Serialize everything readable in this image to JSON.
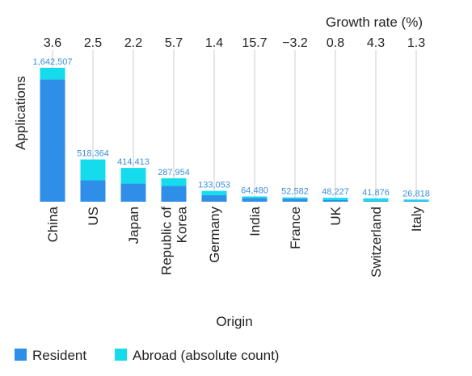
{
  "chart_data": {
    "type": "bar",
    "stacked": true,
    "categories": [
      "China",
      "US",
      "Japan",
      "Republic of Korea",
      "Germany",
      "India",
      "France",
      "UK",
      "Switzerland",
      "Italy"
    ],
    "category_lines": [
      [
        "China"
      ],
      [
        "US"
      ],
      [
        "Japan"
      ],
      [
        "Republic of",
        "Korea"
      ],
      [
        "Germany"
      ],
      [
        "India"
      ],
      [
        "France"
      ],
      [
        "UK"
      ],
      [
        "Switzerland"
      ],
      [
        "Italy"
      ]
    ],
    "totals": [
      1642507,
      518364,
      414413,
      287954,
      133053,
      64480,
      52582,
      48227,
      41876,
      26818
    ],
    "total_labels": [
      "1,642,507",
      "518,364",
      "414,413",
      "287,954",
      "133,053",
      "64,480",
      "52,582",
      "48,227",
      "41,876",
      "26,818"
    ],
    "series": [
      {
        "name": "Resident",
        "color": "#2e8ee8",
        "values": [
          1500000,
          262000,
          222000,
          194000,
          80000,
          44000,
          37000,
          20000,
          9000,
          9000
        ]
      },
      {
        "name": "Abroad (absolute count)",
        "color": "#14dcec",
        "values": [
          142507,
          256364,
          192413,
          93954,
          53053,
          20480,
          15582,
          28227,
          32876,
          17818
        ]
      }
    ],
    "growth_rate_title": "Growth rate (%)",
    "growth_rates": [
      "3.6",
      "2.5",
      "2.2",
      "5.7",
      "1.4",
      "15.7",
      "−3.2",
      "0.8",
      "4.3",
      "1.3"
    ],
    "xlabel": "Origin",
    "ylabel": "Applications",
    "ylim": [
      0,
      1642507
    ],
    "grid": "vertical lines",
    "legend_position": "bottom-left"
  }
}
